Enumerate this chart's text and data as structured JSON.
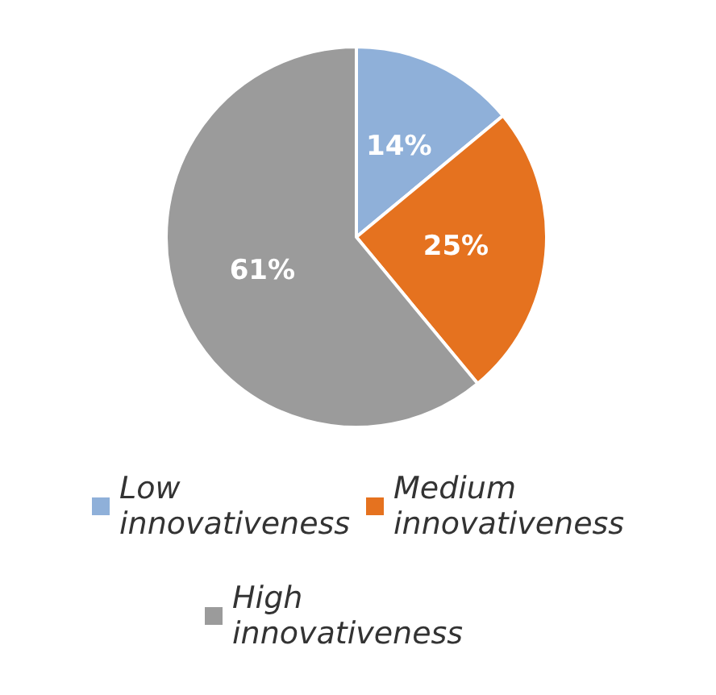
{
  "chart_data": {
    "type": "pie",
    "categories": [
      "Low innovativeness",
      "Medium innovativeness",
      "High innovativeness"
    ],
    "values": [
      14,
      25,
      61
    ],
    "colors": [
      "#8fb0d9",
      "#e5721f",
      "#9b9b9b"
    ],
    "value_labels": [
      "14%",
      "25%",
      "61%"
    ],
    "legend": "bottom"
  }
}
